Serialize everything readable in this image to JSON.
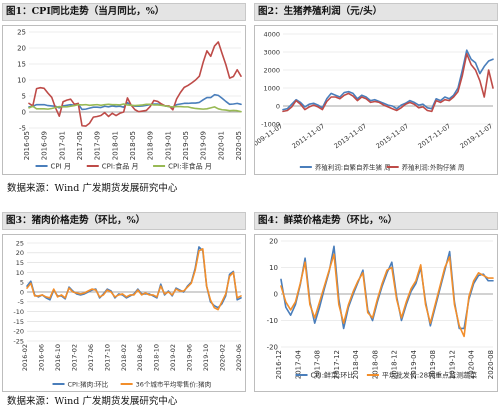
{
  "source_note_top": "数据来源：Wind 广发期货发展研究中心",
  "source_note_bottom": "数据来源：Wind 广发期货发展研究中心",
  "chart_data": [
    {
      "id": "p1",
      "type": "line",
      "title": "图1：CPI同比走势（当月同比，%）",
      "ylim": [
        -5,
        25
      ],
      "yticks": [
        -5,
        0,
        5,
        10,
        15,
        20,
        25
      ],
      "grid": true,
      "legend_position": "bottom",
      "x_dates": [
        "2015-12",
        "2016-01",
        "2016-02",
        "2016-03",
        "2016-04",
        "2016-05",
        "2016-06",
        "2016-07",
        "2016-08",
        "2016-09",
        "2016-10",
        "2016-11",
        "2016-12",
        "2017-01",
        "2017-02",
        "2017-03",
        "2017-04",
        "2017-05",
        "2017-06",
        "2017-07",
        "2017-08",
        "2017-09",
        "2017-10",
        "2017-11",
        "2017-12",
        "2018-01",
        "2018-02",
        "2018-03",
        "2018-04",
        "2018-05",
        "2018-06",
        "2018-07",
        "2018-08",
        "2018-09",
        "2018-10",
        "2018-11",
        "2018-12",
        "2019-01",
        "2019-02",
        "2019-03",
        "2019-04",
        "2019-05",
        "2019-06",
        "2019-07",
        "2019-08",
        "2019-09",
        "2019-10",
        "2019-11",
        "2019-12",
        "2020-01",
        "2020-02",
        "2020-03",
        "2020-04",
        "2020-05",
        "2020-06",
        "2020-07",
        "2020-08"
      ],
      "x_tick_labels": [
        "2016-05",
        "2016-09",
        "2017-01",
        "2017-05",
        "2017-09",
        "2018-01",
        "2018-05",
        "2018-09",
        "2019-01",
        "2019-05",
        "2019-09",
        "2020-01",
        "2020-05"
      ],
      "series": [
        {
          "name": "CPI 月",
          "color": "#4a7ebb",
          "values": [
            1.6,
            1.8,
            2.3,
            2.3,
            2.3,
            2.0,
            1.9,
            1.8,
            1.3,
            1.9,
            2.1,
            2.3,
            2.1,
            2.5,
            0.8,
            0.9,
            1.2,
            1.5,
            1.5,
            1.4,
            1.8,
            1.6,
            1.9,
            1.7,
            1.8,
            1.5,
            2.9,
            2.1,
            1.8,
            1.8,
            1.9,
            2.1,
            2.3,
            2.5,
            2.5,
            2.2,
            1.9,
            1.7,
            1.5,
            2.3,
            2.5,
            2.7,
            2.7,
            2.8,
            2.8,
            3.0,
            3.8,
            4.5,
            4.5,
            5.4,
            5.2,
            4.3,
            3.3,
            2.4,
            2.5,
            2.7,
            2.4
          ]
        },
        {
          "name": "CPI:食品 月",
          "color": "#be4b48",
          "values": [
            2.7,
            1.9,
            7.3,
            7.6,
            7.4,
            5.9,
            4.6,
            1.3,
            -1.3,
            3.2,
            3.7,
            4.0,
            2.4,
            2.7,
            -4.3,
            -4.4,
            -3.5,
            -1.6,
            -1.4,
            -1.1,
            -0.2,
            -1.4,
            -0.4,
            -1.1,
            -0.4,
            0.0,
            4.4,
            2.1,
            0.7,
            0.1,
            0.3,
            0.5,
            1.7,
            3.6,
            3.3,
            2.5,
            1.9,
            1.9,
            0.7,
            4.1,
            6.1,
            7.7,
            8.3,
            9.1,
            10.0,
            11.2,
            15.5,
            19.1,
            17.4,
            20.6,
            21.9,
            18.3,
            14.8,
            10.6,
            11.1,
            13.2,
            11.2
          ]
        },
        {
          "name": "CPI:非食品 月",
          "color": "#98b954",
          "values": [
            1.3,
            1.8,
            1.0,
            1.0,
            1.0,
            0.9,
            1.1,
            1.4,
            1.7,
            1.6,
            1.6,
            1.8,
            2.0,
            2.3,
            2.2,
            2.3,
            2.1,
            2.2,
            2.3,
            2.1,
            2.3,
            2.4,
            2.3,
            2.3,
            2.2,
            2.5,
            2.2,
            2.1,
            2.0,
            2.1,
            2.2,
            2.4,
            2.4,
            2.2,
            2.2,
            2.1,
            1.9,
            1.7,
            1.6,
            1.7,
            1.7,
            1.6,
            1.6,
            1.3,
            1.1,
            1.0,
            0.9,
            1.0,
            1.3,
            1.6,
            1.0,
            0.7,
            0.6,
            0.4,
            0.5,
            0.4,
            0.1
          ]
        }
      ]
    },
    {
      "id": "p2",
      "type": "line",
      "title": "图2：生猪养殖利润（元/头）",
      "ylim": [
        -1000,
        4000
      ],
      "yticks": [
        -1000,
        0,
        1000,
        2000,
        3000,
        4000
      ],
      "grid": true,
      "legend_position": "bottom",
      "x_dates": [
        "2015-12",
        "2016-03",
        "2016-06",
        "2016-09",
        "2016-12",
        "2017-03",
        "2017-06",
        "2017-09",
        "2017-12",
        "2018-03",
        "2018-06",
        "2018-09",
        "2018-12",
        "2019-03",
        "2019-06",
        "2019-09",
        "2019-12",
        "2020-03",
        "2020-06",
        "2020-09",
        "2020-12",
        "2021-03",
        "2021-06",
        "2021-09",
        "2021-12",
        "2022-03",
        "2022-06",
        "2022-09",
        "2022-12",
        "2023-03",
        "2023-06",
        "2023-09",
        "2023-12",
        "2024-03",
        "2024-06",
        "2024-09",
        "2024-12",
        "2025-03",
        "2025-06",
        "2025-09",
        "2025-12",
        "2026-03",
        "2026-06",
        "2026-09",
        "2026-12",
        "2027-03",
        "2027-06",
        "2027-09",
        "2027-12"
      ],
      "x_tick_labels": [
        "2009-11-07",
        "2011-11-07",
        "2013-11-07",
        "2015-11-07",
        "2017-11-07",
        "2019-11-07"
      ],
      "series": [
        {
          "name": "养殖利润:自繁自养生猪 周",
          "color": "#4a7ebb",
          "values": [
            -200,
            -150,
            100,
            350,
            200,
            -50,
            100,
            150,
            50,
            -100,
            400,
            700,
            600,
            500,
            750,
            800,
            700,
            400,
            600,
            500,
            300,
            350,
            250,
            150,
            50,
            0,
            -150,
            50,
            150,
            300,
            200,
            50,
            100,
            -100,
            -150,
            400,
            300,
            500,
            400,
            600,
            1000,
            2000,
            3100,
            2600,
            2400,
            1800,
            2200,
            2500,
            2600
          ]
        },
        {
          "name": "养殖利润:外购仔猪 周",
          "color": "#be4b48",
          "values": [
            -300,
            -250,
            -50,
            300,
            100,
            -200,
            -50,
            50,
            -50,
            -200,
            250,
            500,
            500,
            400,
            600,
            700,
            550,
            300,
            500,
            400,
            200,
            250,
            200,
            50,
            -50,
            -150,
            -250,
            -100,
            100,
            200,
            100,
            -100,
            -50,
            -250,
            -300,
            300,
            200,
            350,
            300,
            500,
            800,
            1700,
            2900,
            2300,
            2000,
            1400,
            500,
            2000,
            1000
          ]
        }
      ]
    },
    {
      "id": "p3",
      "type": "line",
      "title": "图3：猪肉价格走势（环比，%）",
      "ylim": [
        -25,
        25
      ],
      "yticks": [
        -25,
        -20,
        -15,
        -10,
        -5,
        0,
        5,
        10,
        15,
        20,
        25
      ],
      "grid": true,
      "legend_position": "bottom",
      "x_dates": [
        "2015-12",
        "2016-01",
        "2016-02",
        "2016-03",
        "2016-04",
        "2016-05",
        "2016-06",
        "2016-07",
        "2016-08",
        "2016-09",
        "2016-10",
        "2016-11",
        "2016-12",
        "2017-01",
        "2017-02",
        "2017-03",
        "2017-04",
        "2017-05",
        "2017-06",
        "2017-07",
        "2017-08",
        "2017-09",
        "2017-10",
        "2017-11",
        "2017-12",
        "2018-01",
        "2018-02",
        "2018-03",
        "2018-04",
        "2018-05",
        "2018-06",
        "2018-07",
        "2018-08",
        "2018-09",
        "2018-10",
        "2018-11",
        "2018-12",
        "2019-01",
        "2019-02",
        "2019-03",
        "2019-04",
        "2019-05",
        "2019-06",
        "2019-07",
        "2019-08",
        "2019-09",
        "2019-10",
        "2019-11",
        "2019-12",
        "2020-01",
        "2020-02",
        "2020-03",
        "2020-04",
        "2020-05",
        "2020-06",
        "2020-07",
        "2020-08"
      ],
      "x_tick_labels": [
        "2016-02",
        "2016-06",
        "2016-10",
        "2017-02",
        "2017-06",
        "2017-10",
        "2018-02",
        "2018-06",
        "2018-10",
        "2019-02",
        "2019-06",
        "2019-10",
        "2020-02",
        "2020-06"
      ],
      "series": [
        {
          "name": "CPI:猪肉:环比",
          "color": "#4a7ebb",
          "values": [
            3.0,
            5.5,
            -1.5,
            -2.5,
            -1.5,
            -3.0,
            -4.0,
            1.0,
            -2.0,
            -2.0,
            -3.5,
            2.5,
            0.5,
            -1.0,
            -1.5,
            -1.0,
            0.0,
            1.0,
            1.5,
            -3.0,
            -1.0,
            1.5,
            0.5,
            -3.0,
            -1.0,
            -1.5,
            -3.0,
            -2.0,
            -1.0,
            1.5,
            -1.0,
            -1.0,
            -1.0,
            -2.0,
            -3.0,
            4.0,
            -1.5,
            0.5,
            -2.0,
            2.0,
            1.0,
            0.0,
            3.0,
            5.0,
            12.0,
            23.0,
            21.0,
            3.0,
            -5.0,
            -7.0,
            -8.0,
            -6.0,
            -2.0,
            9.0,
            10.5,
            -4.0,
            -3.0
          ]
        },
        {
          "name": "36个城市平均零售价:猪肉",
          "color": "#f28e2b",
          "values": [
            2.0,
            4.5,
            -2.0,
            -2.0,
            -1.5,
            -2.5,
            -3.0,
            1.5,
            -2.5,
            -1.5,
            -3.0,
            2.0,
            0.0,
            -0.5,
            -1.0,
            -0.5,
            0.5,
            1.5,
            1.0,
            -2.5,
            -1.5,
            1.0,
            0.0,
            -2.5,
            -1.5,
            -1.0,
            -2.5,
            -1.5,
            -1.5,
            1.0,
            -1.5,
            -0.5,
            -1.5,
            -1.5,
            -2.5,
            3.0,
            -1.0,
            0.0,
            -1.5,
            1.5,
            0.5,
            0.5,
            2.5,
            4.5,
            11.0,
            21.0,
            22.0,
            3.0,
            -4.0,
            -8.0,
            -9.0,
            -5.0,
            -1.0,
            8.0,
            10.0,
            -3.0,
            -2.0
          ]
        }
      ]
    },
    {
      "id": "p4",
      "type": "line",
      "title": "图4：鲜菜价格走势（环比，%）",
      "ylim": [
        -20,
        20
      ],
      "yticks": [
        -20,
        -10,
        0,
        10,
        20
      ],
      "grid": true,
      "legend_position": "bottom",
      "x_dates": [
        "2016-12",
        "2017-01",
        "2017-02",
        "2017-03",
        "2017-04",
        "2017-05",
        "2017-06",
        "2017-07",
        "2017-08",
        "2017-09",
        "2017-10",
        "2017-11",
        "2017-12",
        "2018-01",
        "2018-02",
        "2018-03",
        "2018-04",
        "2018-05",
        "2018-06",
        "2018-07",
        "2018-08",
        "2018-09",
        "2018-10",
        "2018-11",
        "2018-12",
        "2019-01",
        "2019-02",
        "2019-03",
        "2019-04",
        "2019-05",
        "2019-06",
        "2019-07",
        "2019-08",
        "2019-09",
        "2019-10",
        "2019-11",
        "2019-12",
        "2020-01",
        "2020-02",
        "2020-03",
        "2020-04",
        "2020-05",
        "2020-06",
        "2020-07",
        "2020-08"
      ],
      "x_tick_labels": [
        "2016-12",
        "2017-04",
        "2017-08",
        "2017-12",
        "2018-04",
        "2018-08",
        "2018-12",
        "2019-04",
        "2019-08",
        "2019-12",
        "2020-04",
        "2020-08"
      ],
      "series": [
        {
          "name": "CPI:鲜菜:环比",
          "color": "#4a7ebb",
          "values": [
            5.5,
            -5.0,
            -8.0,
            -4.0,
            3.5,
            13.5,
            -3.0,
            -11.0,
            -5.0,
            2.0,
            8.5,
            18.0,
            -2.0,
            -13.0,
            -5.0,
            0.0,
            4.5,
            9.0,
            -6.0,
            -10.0,
            -3.0,
            3.0,
            8.0,
            12.0,
            -1.0,
            -10.0,
            -4.0,
            1.0,
            4.0,
            10.0,
            -3.0,
            -12.0,
            -5.0,
            2.0,
            9.0,
            16.0,
            -3.0,
            -13.0,
            -13.0,
            -2.0,
            4.0,
            7.0,
            7.5,
            5.0,
            5.0
          ]
        },
        {
          "name": "平均批发价:28种重点监测蔬菜",
          "color": "#f28e2b",
          "values": [
            3.0,
            -3.0,
            -6.0,
            -3.0,
            4.0,
            12.0,
            -4.0,
            -9.0,
            -3.0,
            3.0,
            9.0,
            15.0,
            -4.0,
            -11.0,
            -4.0,
            1.0,
            5.0,
            8.0,
            -7.0,
            -9.0,
            -2.0,
            4.0,
            9.0,
            10.0,
            -2.0,
            -9.0,
            -3.0,
            2.0,
            5.0,
            11.0,
            -4.0,
            -11.0,
            -4.0,
            3.0,
            10.0,
            14.0,
            -4.0,
            -12.0,
            -16.0,
            -1.0,
            5.0,
            8.0,
            7.0,
            6.0,
            6.0
          ]
        }
      ]
    }
  ]
}
